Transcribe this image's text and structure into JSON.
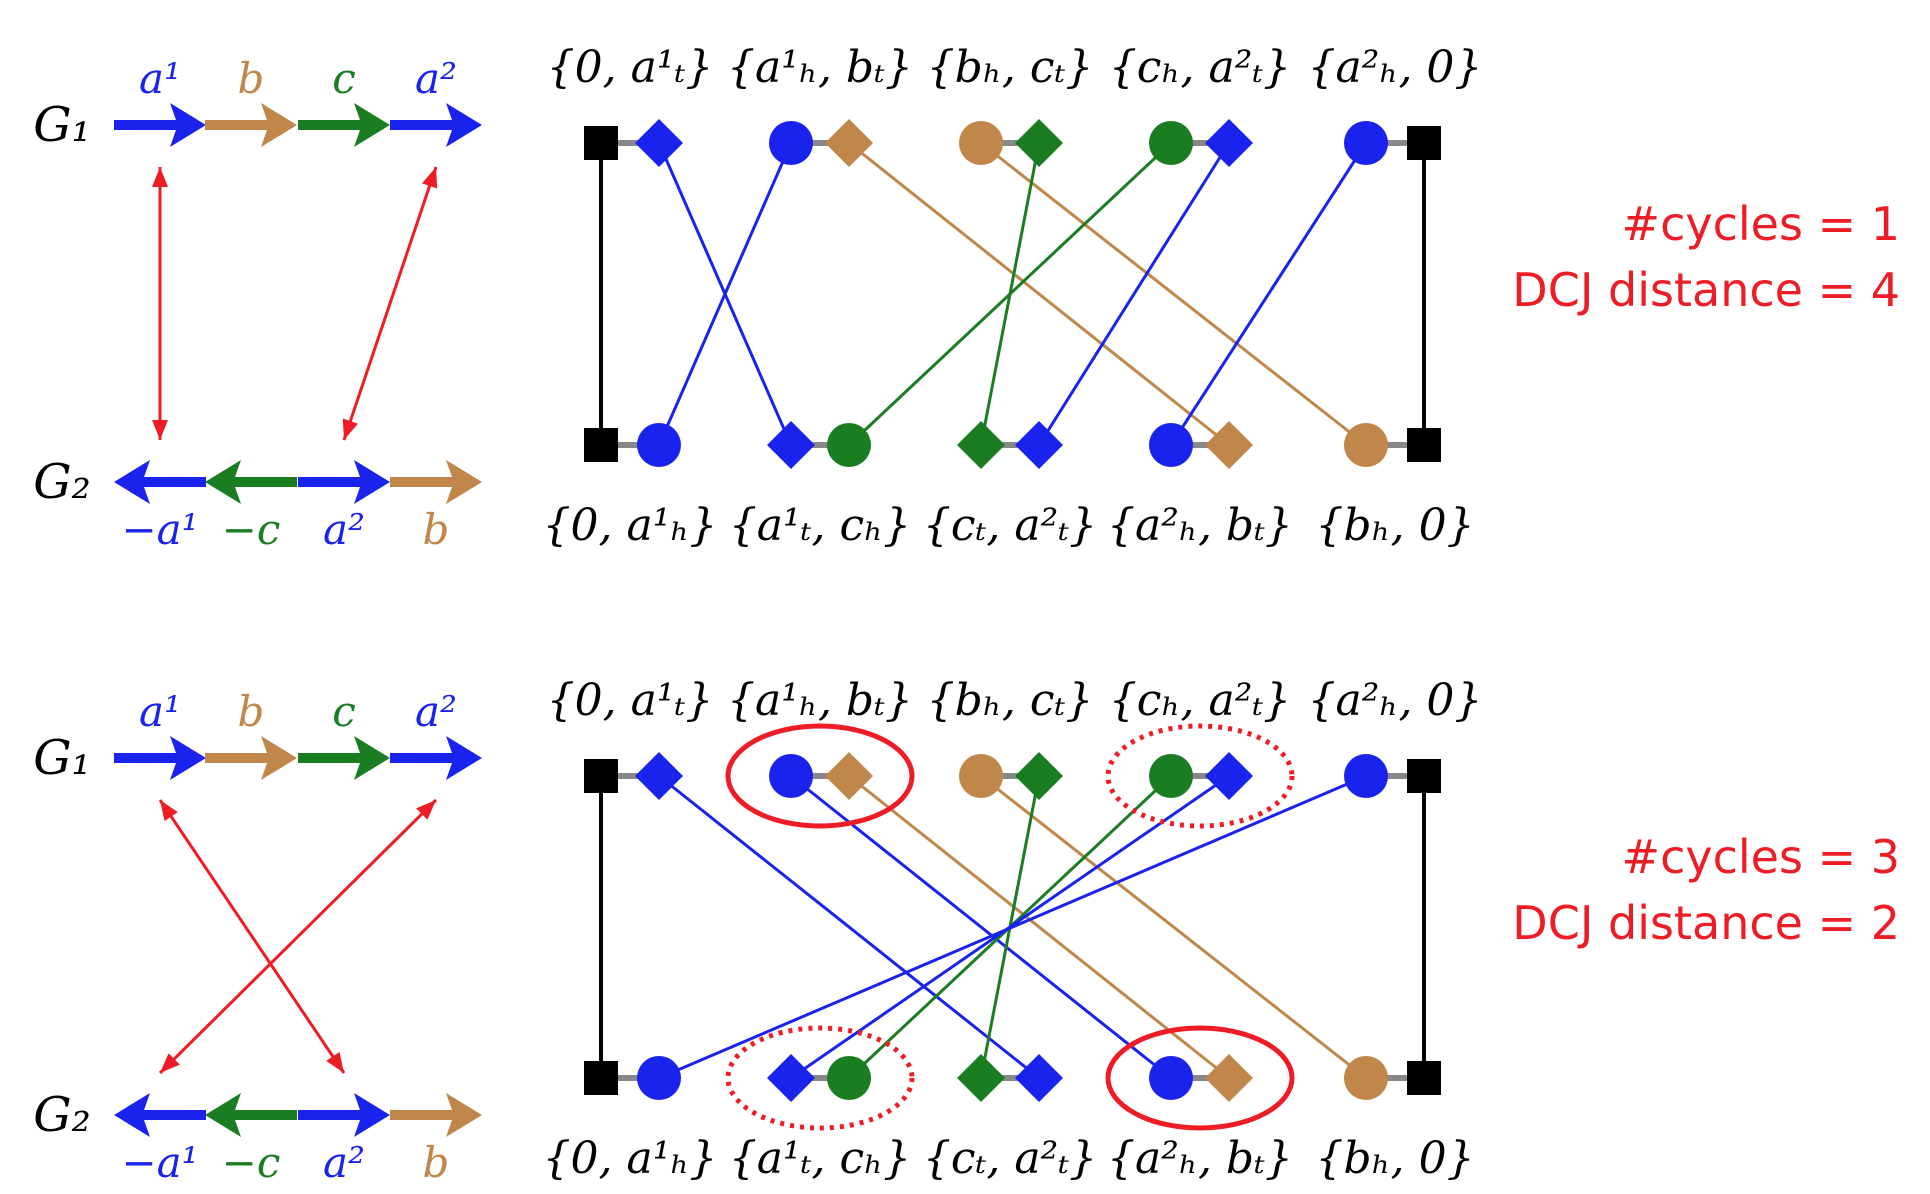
{
  "colors": {
    "a": "#1a22ee",
    "b": "#c0864a",
    "c": "#1a7d22",
    "telomere": "#000000",
    "relation": "#ee1c25",
    "stats": "#ee1c25",
    "connector": "#888888"
  },
  "panels": [
    {
      "id": "top",
      "g1_label": "G₁",
      "g2_label": "G₂",
      "g1_genes": [
        {
          "id": "a1",
          "label": "a¹",
          "color": "a",
          "dir": "right"
        },
        {
          "id": "b",
          "label": "b",
          "color": "b",
          "dir": "right"
        },
        {
          "id": "c",
          "label": "c",
          "color": "c",
          "dir": "right"
        },
        {
          "id": "a2",
          "label": "a²",
          "color": "a",
          "dir": "right"
        }
      ],
      "g2_genes": [
        {
          "id": "a1",
          "label": "−a¹",
          "color": "a",
          "dir": "left"
        },
        {
          "id": "c",
          "label": "−c",
          "color": "c",
          "dir": "left"
        },
        {
          "id": "a2",
          "label": "a²",
          "color": "a",
          "dir": "right"
        },
        {
          "id": "b",
          "label": "b",
          "color": "b",
          "dir": "right"
        }
      ],
      "assignment": [
        [
          0,
          0
        ],
        [
          3,
          2
        ]
      ],
      "top_adjacencies": [
        "{0, a¹ₜ}",
        "{a¹ₕ, bₜ}",
        "{bₕ, cₜ}",
        "{cₕ, a²ₜ}",
        "{a²ₕ, 0}"
      ],
      "bottom_adjacencies": [
        "{0, a¹ₕ}",
        "{a¹ₜ, cₕ}",
        "{cₜ, a²ₜ}",
        "{a²ₕ, bₜ}",
        "{bₕ, 0}"
      ],
      "top_nodes": [
        [
          "telomere",
          "a_diamond"
        ],
        [
          "a_circle",
          "b_diamond"
        ],
        [
          "b_circle",
          "c_diamond"
        ],
        [
          "c_circle",
          "a_diamond"
        ],
        [
          "a_circle",
          "telomere"
        ]
      ],
      "bottom_nodes": [
        [
          "telomere",
          "a_circle"
        ],
        [
          "a_diamond",
          "c_circle"
        ],
        [
          "c_diamond",
          "a_diamond"
        ],
        [
          "a_circle",
          "b_diamond"
        ],
        [
          "b_circle",
          "telomere"
        ]
      ],
      "edges": [
        {
          "from": [
            0,
            0
          ],
          "to": [
            0,
            0
          ],
          "color": "telomere"
        },
        {
          "from": [
            4,
            1
          ],
          "to": [
            4,
            1
          ],
          "color": "telomere"
        },
        {
          "from": [
            0,
            1
          ],
          "to": [
            1,
            0
          ],
          "color": "a"
        },
        {
          "from": [
            1,
            0
          ],
          "to": [
            0,
            1
          ],
          "color": "a"
        },
        {
          "from": [
            1,
            1
          ],
          "to": [
            3,
            1
          ],
          "color": "b"
        },
        {
          "from": [
            2,
            0
          ],
          "to": [
            4,
            0
          ],
          "color": "b"
        },
        {
          "from": [
            2,
            1
          ],
          "to": [
            2,
            0
          ],
          "color": "c"
        },
        {
          "from": [
            3,
            0
          ],
          "to": [
            1,
            1
          ],
          "color": "c"
        },
        {
          "from": [
            3,
            1
          ],
          "to": [
            2,
            1
          ],
          "color": "a"
        },
        {
          "from": [
            4,
            0
          ],
          "to": [
            3,
            0
          ],
          "color": "a"
        }
      ],
      "highlights": [],
      "stats": {
        "cycles": "#cycles = 1",
        "distance": "DCJ distance = 4"
      }
    },
    {
      "id": "bottom",
      "g1_label": "G₁",
      "g2_label": "G₂",
      "g1_genes": [
        {
          "id": "a1",
          "label": "a¹",
          "color": "a",
          "dir": "right"
        },
        {
          "id": "b",
          "label": "b",
          "color": "b",
          "dir": "right"
        },
        {
          "id": "c",
          "label": "c",
          "color": "c",
          "dir": "right"
        },
        {
          "id": "a2",
          "label": "a²",
          "color": "a",
          "dir": "right"
        }
      ],
      "g2_genes": [
        {
          "id": "a1",
          "label": "−a¹",
          "color": "a",
          "dir": "left"
        },
        {
          "id": "c",
          "label": "−c",
          "color": "c",
          "dir": "left"
        },
        {
          "id": "a2",
          "label": "a²",
          "color": "a",
          "dir": "right"
        },
        {
          "id": "b",
          "label": "b",
          "color": "b",
          "dir": "right"
        }
      ],
      "assignment": [
        [
          0,
          2
        ],
        [
          3,
          0
        ]
      ],
      "top_adjacencies": [
        "{0, a¹ₜ}",
        "{a¹ₕ, bₜ}",
        "{bₕ, cₜ}",
        "{cₕ, a²ₜ}",
        "{a²ₕ, 0}"
      ],
      "bottom_adjacencies": [
        "{0, a¹ₕ}",
        "{a¹ₜ, cₕ}",
        "{cₜ, a²ₜ}",
        "{a²ₕ, bₜ}",
        "{bₕ, 0}"
      ],
      "top_nodes": [
        [
          "telomere",
          "a_diamond"
        ],
        [
          "a_circle",
          "b_diamond"
        ],
        [
          "b_circle",
          "c_diamond"
        ],
        [
          "c_circle",
          "a_diamond"
        ],
        [
          "a_circle",
          "telomere"
        ]
      ],
      "bottom_nodes": [
        [
          "telomere",
          "a_circle"
        ],
        [
          "a_diamond",
          "c_circle"
        ],
        [
          "c_diamond",
          "a_diamond"
        ],
        [
          "a_circle",
          "b_diamond"
        ],
        [
          "b_circle",
          "telomere"
        ]
      ],
      "edges": [
        {
          "from": [
            0,
            0
          ],
          "to": [
            0,
            0
          ],
          "color": "telomere"
        },
        {
          "from": [
            4,
            1
          ],
          "to": [
            4,
            1
          ],
          "color": "telomere"
        },
        {
          "from": [
            0,
            1
          ],
          "to": [
            2,
            1
          ],
          "color": "a"
        },
        {
          "from": [
            1,
            0
          ],
          "to": [
            3,
            0
          ],
          "color": "a"
        },
        {
          "from": [
            1,
            1
          ],
          "to": [
            3,
            1
          ],
          "color": "b"
        },
        {
          "from": [
            2,
            0
          ],
          "to": [
            4,
            0
          ],
          "color": "b"
        },
        {
          "from": [
            2,
            1
          ],
          "to": [
            2,
            0
          ],
          "color": "c"
        },
        {
          "from": [
            3,
            0
          ],
          "to": [
            1,
            1
          ],
          "color": "c"
        },
        {
          "from": [
            3,
            1
          ],
          "to": [
            1,
            0
          ],
          "color": "a"
        },
        {
          "from": [
            4,
            0
          ],
          "to": [
            0,
            1
          ],
          "color": "a"
        }
      ],
      "highlights": [
        {
          "row": "top",
          "index": 1,
          "style": "solid"
        },
        {
          "row": "top",
          "index": 3,
          "style": "dotted"
        },
        {
          "row": "bottom",
          "index": 1,
          "style": "dotted"
        },
        {
          "row": "bottom",
          "index": 3,
          "style": "solid"
        }
      ],
      "stats": {
        "cycles": "#cycles = 3",
        "distance": "DCJ distance = 2"
      }
    }
  ]
}
